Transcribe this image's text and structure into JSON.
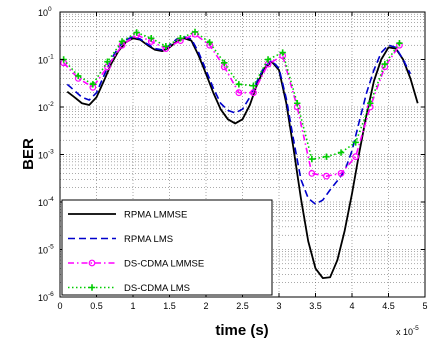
{
  "chart_data": {
    "type": "line",
    "title": "",
    "xlabel": "time (s)",
    "ylabel": "BER",
    "x_multiplier_label": {
      "base": "x 10",
      "exponent": "-5"
    },
    "xlim": [
      0,
      5
    ],
    "ylim": [
      1e-06,
      1
    ],
    "yscale": "log",
    "grid": true,
    "legend_position": "bottom-left",
    "x_ticks": [
      "0",
      "0.5",
      "1",
      "1.5",
      "2",
      "2.5",
      "3",
      "3.5",
      "4",
      "4.5",
      "5"
    ],
    "y_ticks": [
      {
        "value": 1e-06,
        "base": "10",
        "exp": "-6"
      },
      {
        "value": 1e-05,
        "base": "10",
        "exp": "-5"
      },
      {
        "value": 0.0001,
        "base": "10",
        "exp": "-4"
      },
      {
        "value": 0.001,
        "base": "10",
        "exp": "-3"
      },
      {
        "value": 0.01,
        "base": "10",
        "exp": "-2"
      },
      {
        "value": 0.1,
        "base": "10",
        "exp": "-1"
      },
      {
        "value": 1,
        "base": "10",
        "exp": "0"
      }
    ],
    "series": [
      {
        "name": "RPMA LMMSE",
        "color": "#000000",
        "dash": "solid",
        "marker": "none",
        "x": [
          0.1,
          0.2,
          0.3,
          0.4,
          0.5,
          0.6,
          0.7,
          0.8,
          0.9,
          1.0,
          1.1,
          1.2,
          1.3,
          1.4,
          1.5,
          1.6,
          1.7,
          1.8,
          1.9,
          2.0,
          2.1,
          2.2,
          2.3,
          2.4,
          2.5,
          2.6,
          2.7,
          2.8,
          2.9,
          3.0,
          3.1,
          3.2,
          3.3,
          3.4,
          3.5,
          3.6,
          3.7,
          3.8,
          3.9,
          4.0,
          4.1,
          4.2,
          4.3,
          4.4,
          4.5,
          4.6,
          4.7,
          4.8,
          4.9
        ],
        "y": [
          0.021,
          0.016,
          0.012,
          0.011,
          0.016,
          0.035,
          0.08,
          0.15,
          0.23,
          0.28,
          0.26,
          0.2,
          0.16,
          0.15,
          0.18,
          0.24,
          0.28,
          0.25,
          0.12,
          0.05,
          0.02,
          0.009,
          0.0055,
          0.0045,
          0.0055,
          0.011,
          0.03,
          0.065,
          0.09,
          0.06,
          0.012,
          0.0013,
          0.00012,
          1.5e-05,
          4e-06,
          2.5e-06,
          2.6e-06,
          6e-06,
          2.5e-05,
          0.00015,
          0.0011,
          0.007,
          0.035,
          0.1,
          0.18,
          0.17,
          0.1,
          0.04,
          0.012
        ]
      },
      {
        "name": "RPMA LMS",
        "color": "#0000cc",
        "dash": "dashed",
        "marker": "none",
        "x": [
          0.1,
          0.2,
          0.3,
          0.4,
          0.5,
          0.6,
          0.7,
          0.8,
          0.9,
          1.0,
          1.1,
          1.2,
          1.3,
          1.4,
          1.5,
          1.6,
          1.7,
          1.8,
          1.9,
          2.0,
          2.1,
          2.2,
          2.3,
          2.4,
          2.5,
          2.6,
          2.7,
          2.8,
          2.9,
          3.0,
          3.1,
          3.2,
          3.3,
          3.4,
          3.5,
          3.6,
          3.7,
          3.8,
          3.9,
          4.0,
          4.1,
          4.2,
          4.3,
          4.4,
          4.5,
          4.6,
          4.7,
          4.8
        ],
        "y": [
          0.03,
          0.022,
          0.016,
          0.014,
          0.02,
          0.045,
          0.1,
          0.18,
          0.26,
          0.3,
          0.27,
          0.21,
          0.17,
          0.16,
          0.2,
          0.27,
          0.3,
          0.27,
          0.14,
          0.06,
          0.025,
          0.012,
          0.0085,
          0.0075,
          0.009,
          0.016,
          0.035,
          0.07,
          0.095,
          0.065,
          0.015,
          0.002,
          0.0003,
          0.00012,
          9e-05,
          0.00011,
          0.00018,
          0.00028,
          0.00045,
          0.0012,
          0.005,
          0.02,
          0.06,
          0.14,
          0.2,
          0.18,
          0.1,
          0.05
        ]
      },
      {
        "name": "DS-CDMA LMMSE",
        "color": "#ff00ff",
        "dash": "dash-dot",
        "marker": "circle",
        "x": [
          0.05,
          0.25,
          0.45,
          0.65,
          0.85,
          1.05,
          1.25,
          1.45,
          1.65,
          1.85,
          2.05,
          2.25,
          2.45,
          2.65,
          2.85,
          3.05,
          3.25,
          3.45,
          3.65,
          3.85,
          4.05,
          4.25,
          4.45,
          4.65
        ],
        "y": [
          0.085,
          0.04,
          0.026,
          0.07,
          0.2,
          0.33,
          0.24,
          0.17,
          0.25,
          0.34,
          0.2,
          0.07,
          0.02,
          0.02,
          0.08,
          0.12,
          0.01,
          0.0004,
          0.00035,
          0.0004,
          0.0009,
          0.01,
          0.07,
          0.2
        ]
      },
      {
        "name": "DS-CDMA LMS",
        "color": "#00cc00",
        "dash": "dotted",
        "marker": "plus",
        "x": [
          0.05,
          0.25,
          0.45,
          0.65,
          0.85,
          1.05,
          1.25,
          1.45,
          1.65,
          1.85,
          2.05,
          2.25,
          2.45,
          2.65,
          2.85,
          3.05,
          3.25,
          3.45,
          3.65,
          3.85,
          4.05,
          4.25,
          4.45,
          4.65
        ],
        "y": [
          0.1,
          0.045,
          0.03,
          0.09,
          0.24,
          0.37,
          0.28,
          0.19,
          0.28,
          0.38,
          0.23,
          0.085,
          0.03,
          0.028,
          0.1,
          0.14,
          0.012,
          0.0008,
          0.0009,
          0.0011,
          0.0018,
          0.012,
          0.08,
          0.22
        ]
      }
    ]
  }
}
